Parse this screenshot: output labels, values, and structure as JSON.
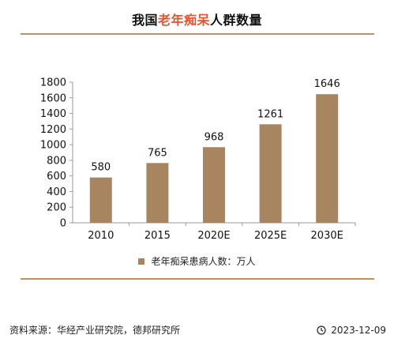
{
  "title": {
    "prefix": "我国",
    "highlight": "老年痴呆",
    "suffix": "人群数量"
  },
  "colors": {
    "bar": "#a88561",
    "accent": "#e4572e",
    "rule": "#b8926a",
    "axis": "#9a9a9a"
  },
  "chart_data": {
    "type": "bar",
    "categories": [
      "2010",
      "2015",
      "2020E",
      "2025E",
      "2030E"
    ],
    "series": [
      {
        "name": "老年痴呆患病人数：万人",
        "values": [
          580,
          765,
          968,
          1261,
          1646
        ]
      }
    ],
    "ylim": [
      0,
      1800
    ],
    "yticks": [
      0,
      200,
      400,
      600,
      800,
      1000,
      1200,
      1400,
      1600,
      1800
    ],
    "grid": false,
    "legend": "bottom"
  },
  "footer": {
    "source": "资料来源：华经产业研究院，德邦研究所",
    "date": "2023-12-09",
    "date_icon": "clock-icon"
  }
}
